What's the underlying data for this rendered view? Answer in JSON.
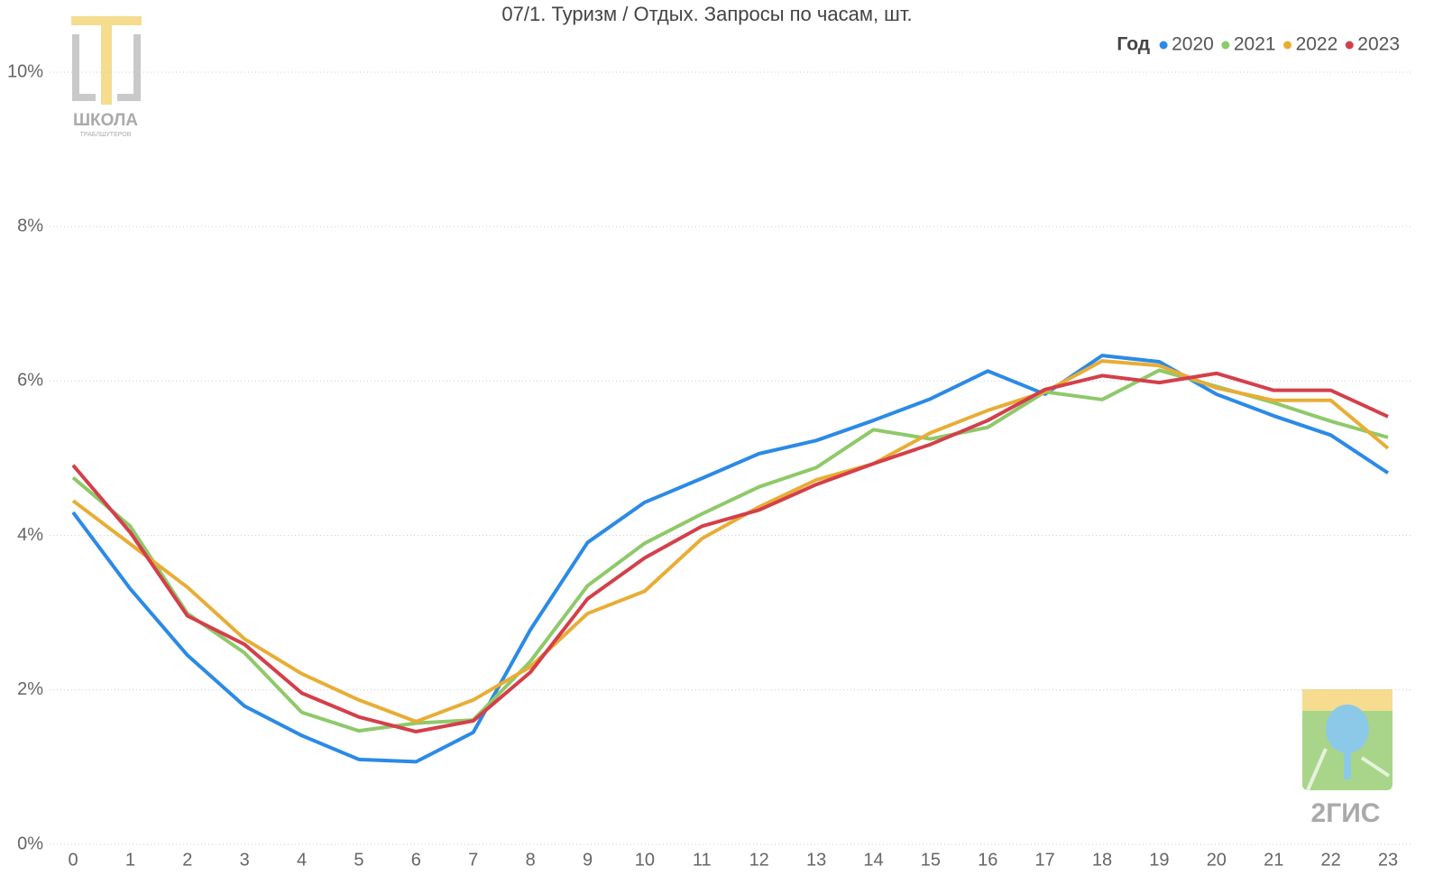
{
  "chart_data": {
    "type": "line",
    "title": "07/1. Туризм / Отдых. Запросы по часам, шт.",
    "legend_title": "Год",
    "legend_position": "top-right",
    "grid": true,
    "categories": [
      "0",
      "1",
      "2",
      "3",
      "4",
      "5",
      "6",
      "7",
      "8",
      "9",
      "10",
      "11",
      "12",
      "13",
      "14",
      "15",
      "16",
      "17",
      "18",
      "19",
      "20",
      "21",
      "22",
      "23"
    ],
    "ylim": [
      0,
      10
    ],
    "yticks": [
      {
        "value": 0,
        "label": "0%"
      },
      {
        "value": 2,
        "label": "2%"
      },
      {
        "value": 4,
        "label": "4%"
      },
      {
        "value": 6,
        "label": "6%"
      },
      {
        "value": 8,
        "label": "8%"
      },
      {
        "value": 10,
        "label": "10%"
      }
    ],
    "series": [
      {
        "name": "2020",
        "color": "#2b8ae6",
        "values": [
          4.3,
          3.31,
          2.45,
          1.79,
          1.41,
          1.1,
          1.07,
          1.45,
          2.78,
          3.91,
          4.43,
          4.74,
          5.06,
          5.23,
          5.49,
          5.77,
          6.13,
          5.83,
          6.33,
          6.25,
          5.83,
          5.55,
          5.3,
          4.81
        ]
      },
      {
        "name": "2021",
        "color": "#8ec96a",
        "values": [
          4.75,
          4.12,
          2.99,
          2.48,
          1.71,
          1.47,
          1.57,
          1.61,
          2.37,
          3.35,
          3.9,
          4.28,
          4.63,
          4.88,
          5.37,
          5.25,
          5.4,
          5.86,
          5.76,
          6.14,
          5.93,
          5.72,
          5.48,
          5.27
        ]
      },
      {
        "name": "2022",
        "color": "#e8ad35",
        "values": [
          4.45,
          3.89,
          3.33,
          2.66,
          2.21,
          1.87,
          1.59,
          1.87,
          2.3,
          2.99,
          3.28,
          3.96,
          4.37,
          4.72,
          4.93,
          5.33,
          5.62,
          5.86,
          6.26,
          6.2,
          5.91,
          5.75,
          5.75,
          5.13
        ]
      },
      {
        "name": "2023",
        "color": "#d43f4a",
        "values": [
          4.91,
          4.04,
          2.96,
          2.59,
          1.96,
          1.65,
          1.46,
          1.6,
          2.23,
          3.18,
          3.71,
          4.12,
          4.33,
          4.66,
          4.93,
          5.18,
          5.49,
          5.89,
          6.07,
          5.98,
          6.1,
          5.88,
          5.88,
          5.54
        ]
      }
    ]
  },
  "logos": {
    "school": {
      "line1": "ШКОЛА",
      "line2": "ТРАБЛШУТЕРОВ"
    },
    "brand": "2ГИС"
  }
}
